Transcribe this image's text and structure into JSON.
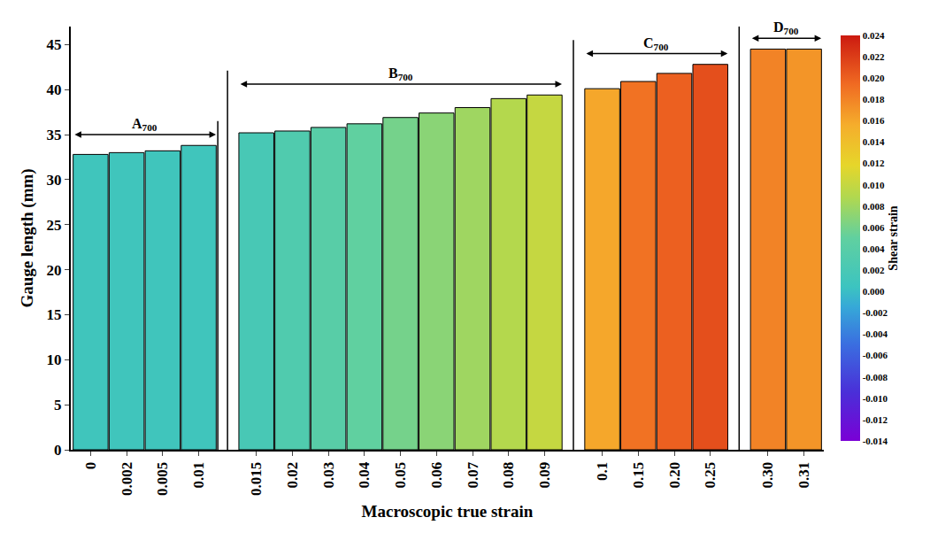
{
  "chart_data": {
    "type": "bar",
    "x_label": "Macroscopic true strain",
    "y_label": "Gauge length (mm)",
    "categories": [
      "0",
      "0.002",
      "0.005",
      "0.01",
      "0.015",
      "0.02",
      "0.03",
      "0.04",
      "0.05",
      "0.06",
      "0.07",
      "0.08",
      "0.09",
      "0.1",
      "0.15",
      "0.20",
      "0.25",
      "0.30",
      "0.31"
    ],
    "values": [
      32.8,
      33.0,
      33.2,
      33.8,
      35.2,
      35.4,
      35.8,
      36.2,
      36.9,
      37.4,
      38.0,
      39.0,
      39.4,
      40.1,
      40.9,
      41.8,
      42.8,
      44.5,
      44.5
    ],
    "shear_strain": [
      0.001,
      0.001,
      0.001,
      0.001,
      0.002,
      0.003,
      0.004,
      0.005,
      0.006,
      0.007,
      0.008,
      0.009,
      0.01,
      0.016,
      0.019,
      0.02,
      0.021,
      0.018,
      0.017
    ],
    "ylim": [
      0,
      47
    ],
    "yticks": [
      0,
      5,
      10,
      15,
      20,
      25,
      30,
      35,
      40,
      45
    ],
    "grid": false,
    "colorbar": {
      "title": "Shear strain",
      "range": [
        -0.014,
        0.024
      ],
      "ticks": [
        0.024,
        0.022,
        {
          "value": 0.02,
          "label": "0.020"
        },
        0.018,
        0.016,
        0.014,
        0.012,
        {
          "value": 0.01,
          "label": "0.010"
        },
        0.008,
        0.006,
        0.004,
        0.002,
        {
          "value": 0,
          "label": "0.000"
        },
        -0.002,
        -0.004,
        -0.006,
        -0.008,
        {
          "value": -0.01,
          "label": "-0.010"
        },
        -0.012,
        -0.014
      ]
    },
    "groups": [
      {
        "label": "A",
        "subscript": "700",
        "from": "0",
        "to": "0.01"
      },
      {
        "label": "B",
        "subscript": "700",
        "from": "0.015",
        "to": "0.09"
      },
      {
        "label": "C",
        "subscript": "700",
        "from": "0.1",
        "to": "0.25"
      },
      {
        "label": "D",
        "subscript": "700",
        "from": "0.30",
        "to": "0.31"
      }
    ]
  }
}
